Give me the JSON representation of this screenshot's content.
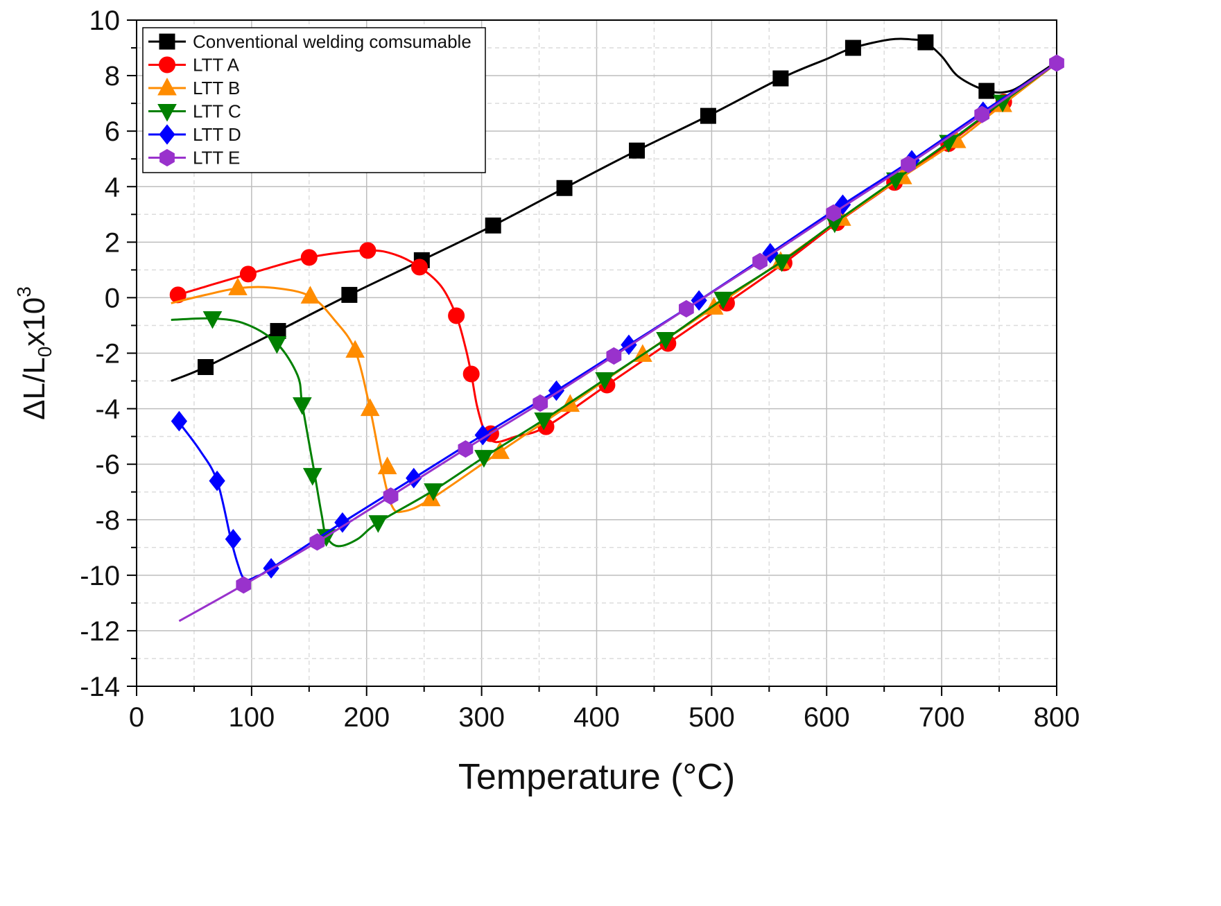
{
  "chart_data": {
    "type": "line",
    "title": "",
    "xlabel": "Temperature (°C)",
    "ylabel": {
      "base": "ΔL/L",
      "sub": "0",
      "mid": "x10",
      "sup": "3"
    },
    "xlim": [
      0,
      800
    ],
    "ylim": [
      -14,
      10
    ],
    "xticks": [
      "0",
      "100",
      "200",
      "300",
      "400",
      "500",
      "600",
      "700",
      "800"
    ],
    "yticks": [
      "-14",
      "-12",
      "-10",
      "-8",
      "-6",
      "-4",
      "-2",
      "0",
      "2",
      "4",
      "6",
      "8",
      "10"
    ],
    "grid": true,
    "legend_position": "top-left",
    "series": [
      {
        "name": "Conventional welding comsumable",
        "color": "#000000",
        "marker": "square",
        "line": [
          [
            30,
            -3.0
          ],
          [
            60,
            -2.5
          ],
          [
            123,
            -1.2
          ],
          [
            185,
            0.1
          ],
          [
            248,
            1.35
          ],
          [
            310,
            2.6
          ],
          [
            372,
            3.95
          ],
          [
            435,
            5.3
          ],
          [
            497,
            6.55
          ],
          [
            560,
            7.9
          ],
          [
            600,
            8.6
          ],
          [
            623,
            9.0
          ],
          [
            655,
            9.3
          ],
          [
            675,
            9.3
          ],
          [
            686,
            9.2
          ],
          [
            700,
            8.7
          ],
          [
            715,
            7.95
          ],
          [
            740,
            7.45
          ],
          [
            760,
            7.45
          ],
          [
            780,
            7.95
          ],
          [
            800,
            8.5
          ]
        ],
        "markers": [
          [
            60,
            -2.5
          ],
          [
            123,
            -1.2
          ],
          [
            185,
            0.1
          ],
          [
            248,
            1.35
          ],
          [
            310,
            2.6
          ],
          [
            372,
            3.95
          ],
          [
            435,
            5.3
          ],
          [
            497,
            6.55
          ],
          [
            560,
            7.9
          ],
          [
            623,
            9.0
          ],
          [
            686,
            9.2
          ],
          [
            739,
            7.45
          ]
        ]
      },
      {
        "name": "LTT A",
        "color": "#ff0000",
        "marker": "circle",
        "line": [
          [
            30,
            0.0
          ],
          [
            36,
            0.1
          ],
          [
            60,
            0.4
          ],
          [
            97,
            0.85
          ],
          [
            150,
            1.45
          ],
          [
            200,
            1.7
          ],
          [
            225,
            1.55
          ],
          [
            246,
            1.1
          ],
          [
            265,
            0.4
          ],
          [
            278,
            -0.65
          ],
          [
            286,
            -1.8
          ],
          [
            291,
            -2.75
          ],
          [
            296,
            -3.9
          ],
          [
            303,
            -4.85
          ],
          [
            312,
            -5.2
          ],
          [
            330,
            -5.0
          ],
          [
            356,
            -4.65
          ],
          [
            409,
            -3.15
          ],
          [
            462,
            -1.65
          ],
          [
            513,
            -0.2
          ],
          [
            563,
            1.25
          ],
          [
            609,
            2.7
          ],
          [
            659,
            4.15
          ],
          [
            706,
            5.55
          ],
          [
            754,
            7.05
          ],
          [
            800,
            8.45
          ]
        ],
        "markers": [
          [
            36,
            0.1
          ],
          [
            97,
            0.85
          ],
          [
            150,
            1.45
          ],
          [
            201,
            1.7
          ],
          [
            246,
            1.1
          ],
          [
            278,
            -0.65
          ],
          [
            291,
            -2.75
          ],
          [
            308,
            -4.9
          ],
          [
            356,
            -4.65
          ],
          [
            409,
            -3.15
          ],
          [
            462,
            -1.65
          ],
          [
            513,
            -0.2
          ],
          [
            563,
            1.25
          ],
          [
            609,
            2.7
          ],
          [
            659,
            4.15
          ],
          [
            706,
            5.55
          ],
          [
            754,
            7.05
          ]
        ]
      },
      {
        "name": "LTT B",
        "color": "#ff8c00",
        "marker": "triangle-up",
        "line": [
          [
            30,
            -0.2
          ],
          [
            60,
            0.1
          ],
          [
            90,
            0.35
          ],
          [
            120,
            0.35
          ],
          [
            151,
            0.05
          ],
          [
            172,
            -0.8
          ],
          [
            190,
            -1.9
          ],
          [
            203,
            -4.0
          ],
          [
            213,
            -6.1
          ],
          [
            222,
            -7.5
          ],
          [
            232,
            -7.7
          ],
          [
            256,
            -7.25
          ],
          [
            316,
            -5.55
          ],
          [
            377,
            -3.85
          ],
          [
            440,
            -2.05
          ],
          [
            502,
            -0.35
          ],
          [
            560,
            1.3
          ],
          [
            613,
            2.85
          ],
          [
            666,
            4.35
          ],
          [
            713,
            5.65
          ],
          [
            753,
            6.95
          ],
          [
            800,
            8.45
          ]
        ],
        "markers": [
          [
            88,
            0.35
          ],
          [
            151,
            0.05
          ],
          [
            190,
            -1.9
          ],
          [
            203,
            -4.0
          ],
          [
            218,
            -6.1
          ],
          [
            256,
            -7.25
          ],
          [
            316,
            -5.55
          ],
          [
            377,
            -3.85
          ],
          [
            440,
            -2.05
          ],
          [
            502,
            -0.35
          ],
          [
            560,
            1.3
          ],
          [
            613,
            2.85
          ],
          [
            666,
            4.35
          ],
          [
            713,
            5.65
          ],
          [
            753,
            6.95
          ]
        ]
      },
      {
        "name": "LTT C",
        "color": "#008000",
        "marker": "triangle-down",
        "line": [
          [
            30,
            -0.8
          ],
          [
            66,
            -0.75
          ],
          [
            95,
            -0.95
          ],
          [
            122,
            -1.65
          ],
          [
            140,
            -2.8
          ],
          [
            144,
            -3.85
          ],
          [
            152,
            -5.7
          ],
          [
            155,
            -6.4
          ],
          [
            161,
            -7.85
          ],
          [
            165,
            -8.6
          ],
          [
            175,
            -8.95
          ],
          [
            192,
            -8.7
          ],
          [
            210,
            -8.1
          ],
          [
            258,
            -6.95
          ],
          [
            302,
            -5.75
          ],
          [
            354,
            -4.4
          ],
          [
            407,
            -2.95
          ],
          [
            460,
            -1.5
          ],
          [
            510,
            -0.05
          ],
          [
            561,
            1.3
          ],
          [
            607,
            2.7
          ],
          [
            660,
            4.25
          ],
          [
            706,
            5.6
          ],
          [
            753,
            7.05
          ],
          [
            800,
            8.45
          ]
        ],
        "markers": [
          [
            66,
            -0.75
          ],
          [
            122,
            -1.65
          ],
          [
            144,
            -3.85
          ],
          [
            153,
            -6.4
          ],
          [
            165,
            -8.6
          ],
          [
            210,
            -8.1
          ],
          [
            258,
            -6.95
          ],
          [
            302,
            -5.75
          ],
          [
            354,
            -4.4
          ],
          [
            407,
            -2.95
          ],
          [
            460,
            -1.5
          ],
          [
            510,
            -0.05
          ],
          [
            561,
            1.3
          ],
          [
            607,
            2.7
          ],
          [
            660,
            4.25
          ],
          [
            706,
            5.6
          ],
          [
            753,
            7.05
          ]
        ]
      },
      {
        "name": "LTT D",
        "color": "#0000ff",
        "marker": "diamond",
        "line": [
          [
            36,
            -4.45
          ],
          [
            55,
            -5.5
          ],
          [
            70,
            -6.6
          ],
          [
            82,
            -8.7
          ],
          [
            88,
            -9.6
          ],
          [
            94,
            -10.15
          ],
          [
            104,
            -10.05
          ],
          [
            117,
            -9.75
          ],
          [
            179,
            -8.1
          ],
          [
            241,
            -6.5
          ],
          [
            301,
            -4.95
          ],
          [
            365,
            -3.35
          ],
          [
            428,
            -1.7
          ],
          [
            489,
            -0.1
          ],
          [
            551,
            1.6
          ],
          [
            614,
            3.35
          ],
          [
            674,
            4.95
          ],
          [
            736,
            6.7
          ],
          [
            800,
            8.45
          ]
        ],
        "markers": [
          [
            37,
            -4.45
          ],
          [
            70,
            -6.6
          ],
          [
            84,
            -8.7
          ],
          [
            117,
            -9.75
          ],
          [
            179,
            -8.1
          ],
          [
            241,
            -6.5
          ],
          [
            301,
            -4.95
          ],
          [
            365,
            -3.35
          ],
          [
            428,
            -1.7
          ],
          [
            489,
            -0.1
          ],
          [
            551,
            1.6
          ],
          [
            614,
            3.35
          ],
          [
            674,
            4.95
          ],
          [
            736,
            6.7
          ]
        ]
      },
      {
        "name": "LTT E",
        "color": "#9932cc",
        "marker": "hexagon",
        "line": [
          [
            37,
            -11.65
          ],
          [
            93,
            -10.35
          ],
          [
            157,
            -8.8
          ],
          [
            221,
            -7.15
          ],
          [
            286,
            -5.45
          ],
          [
            351,
            -3.8
          ],
          [
            415,
            -2.1
          ],
          [
            478,
            -0.4
          ],
          [
            542,
            1.3
          ],
          [
            606,
            3.05
          ],
          [
            671,
            4.8
          ],
          [
            735,
            6.6
          ],
          [
            800,
            8.45
          ]
        ],
        "markers": [
          [
            93,
            -10.35
          ],
          [
            157,
            -8.8
          ],
          [
            221,
            -7.15
          ],
          [
            286,
            -5.45
          ],
          [
            351,
            -3.8
          ],
          [
            415,
            -2.1
          ],
          [
            478,
            -0.4
          ],
          [
            542,
            1.3
          ],
          [
            606,
            3.05
          ],
          [
            671,
            4.8
          ],
          [
            735,
            6.6
          ],
          [
            800,
            8.45
          ]
        ]
      }
    ]
  }
}
